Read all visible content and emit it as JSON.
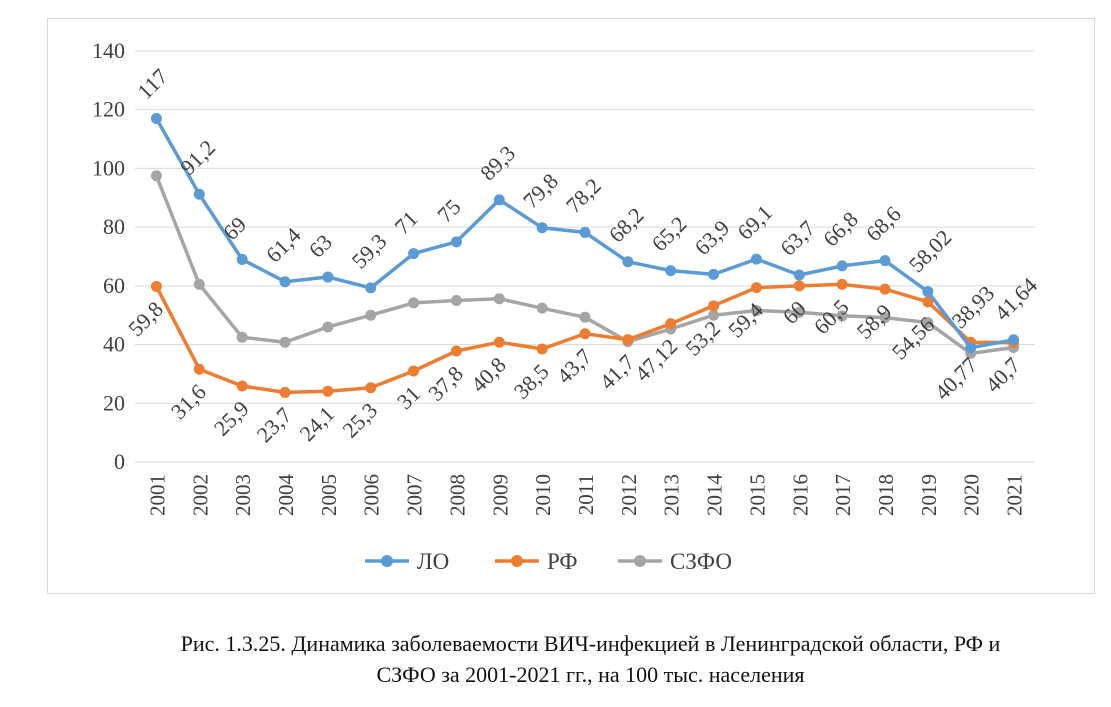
{
  "chart_data": {
    "type": "line",
    "title": "",
    "xlabel": "",
    "ylabel": "",
    "ylim": [
      0,
      140
    ],
    "yticks": [
      0,
      20,
      40,
      60,
      80,
      100,
      120,
      140
    ],
    "grid": true,
    "legend": "bottom",
    "categories": [
      "2001",
      "2002",
      "2003",
      "2004",
      "2005",
      "2006",
      "2007",
      "2008",
      "2009",
      "2010",
      "2011",
      "2012",
      "2013",
      "2014",
      "2015",
      "2016",
      "2017",
      "2018",
      "2019",
      "2020",
      "2021"
    ],
    "series": [
      {
        "name": "ЛО",
        "color": "#5b9bd5",
        "labeled": true,
        "values": [
          117,
          91.2,
          69,
          61.4,
          63,
          59.3,
          71,
          75,
          89.3,
          79.8,
          78.2,
          68.2,
          65.2,
          63.9,
          69.1,
          63.7,
          66.8,
          68.6,
          58.02,
          38.93,
          41.64
        ],
        "labels": [
          "117",
          "91,2",
          "69",
          "61,4",
          "63",
          "59,3",
          "71",
          "75",
          "89,3",
          "79,8",
          "78,2",
          "68,2",
          "65,2",
          "63,9",
          "69,1",
          "63,7",
          "66,8",
          "68,6",
          "58,02",
          "38,93",
          "41,64"
        ]
      },
      {
        "name": "РФ",
        "color": "#ed7d31",
        "labeled": true,
        "values": [
          59.8,
          31.6,
          25.9,
          23.7,
          24.1,
          25.3,
          31,
          37.8,
          40.8,
          38.5,
          43.7,
          41.7,
          47.12,
          53.2,
          59.4,
          60,
          60.5,
          58.9,
          54.56,
          40.77,
          40.7
        ],
        "labels": [
          "59,8",
          "31,6",
          "25,9",
          "23,7",
          "24,1",
          "25,3",
          "31",
          "37,8",
          "40,8",
          "38,5",
          "43,7",
          "41,7",
          "47,12",
          "53,2",
          "59,4",
          "60",
          "60,5",
          "58,9",
          "54,56",
          "40,77",
          "40,7"
        ]
      },
      {
        "name": "СЗФО",
        "color": "#a5a5a5",
        "labeled": false,
        "values": [
          97.5,
          60.5,
          42.5,
          40.8,
          46,
          50,
          54.2,
          55,
          55.6,
          52.4,
          49.3,
          41,
          45.3,
          50,
          51.6,
          51,
          49.8,
          49.2,
          47.5,
          37,
          39
        ],
        "labels": []
      }
    ]
  },
  "caption": {
    "line1": "Рис. 1.3.25. Динамика заболеваемости ВИЧ-инфекцией в Ленинградской области, РФ и",
    "line2": "СЗФО за 2001-2021 гг., на 100 тыс. населения"
  }
}
